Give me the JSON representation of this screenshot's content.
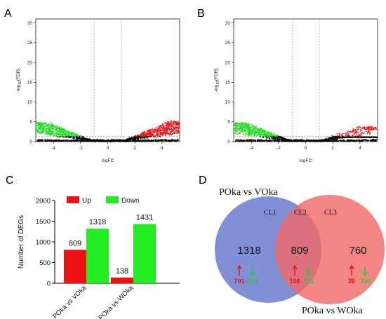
{
  "panels": {
    "a": "A",
    "b": "B",
    "c": "C",
    "d": "D"
  },
  "chart_data": [
    {
      "type": "scatter",
      "panel": "A",
      "xlabel": "logFC",
      "ylabel": "-log10(FDR)",
      "ylabel_base": "-log",
      "ylabel_sub": "10",
      "ylabel_tail": "(FDR)",
      "xlim": [
        -5.3,
        5.3
      ],
      "ylim": [
        0,
        31
      ],
      "xticks": [
        "-4",
        "-2",
        "0",
        "2",
        "4"
      ],
      "xtick_values": [
        -4,
        -2,
        0,
        2,
        4
      ],
      "yticks": [
        "0",
        "5",
        "10",
        "15",
        "20",
        "25",
        "30"
      ],
      "ytick_values": [
        0,
        5,
        10,
        15,
        20,
        25,
        30
      ],
      "vlines": [
        -1,
        1
      ],
      "hline": 1.3,
      "colors": {
        "down": "#22dd22",
        "up": "#ee1111",
        "ns": "#000000"
      },
      "max_left_y": 4.8,
      "max_right_y": 5.2,
      "up_density": 1.0
    },
    {
      "type": "scatter",
      "panel": "B",
      "xlabel": "logFC",
      "ylabel": "-log10(FDR)",
      "ylabel_base": "-log",
      "ylabel_sub": "10",
      "ylabel_tail": "(FDR)",
      "xlim": [
        -5.3,
        5.3
      ],
      "ylim": [
        0,
        31
      ],
      "xticks": [
        "-4",
        "-2",
        "0",
        "2",
        "4"
      ],
      "xtick_values": [
        -4,
        -2,
        0,
        2,
        4
      ],
      "yticks": [
        "0",
        "5",
        "10",
        "15",
        "20",
        "25",
        "30"
      ],
      "ytick_values": [
        0,
        5,
        10,
        15,
        20,
        25,
        30
      ],
      "vlines": [
        -1,
        1
      ],
      "hline": 1.3,
      "colors": {
        "down": "#22dd22",
        "up": "#ee1111",
        "ns": "#000000"
      },
      "max_left_y": 4.8,
      "max_right_y": 3.8,
      "up_density": 0.35
    },
    {
      "type": "bar",
      "panel": "C",
      "categories": [
        "POka vs VOka",
        "POka vs WOka"
      ],
      "series": [
        {
          "name": "Up",
          "values": [
            809,
            138
          ],
          "color": "#ee1111"
        },
        {
          "name": "Down",
          "values": [
            1318,
            1431
          ],
          "color": "#22ee22"
        }
      ],
      "ylabel": "Number of DEGs",
      "ylim": [
        0,
        2000
      ],
      "yticks": [
        "0",
        "500",
        "1000",
        "1500",
        "2000"
      ],
      "ytick_values": [
        0,
        500,
        1000,
        1500,
        2000
      ],
      "legend": "top-left"
    }
  ],
  "venn": {
    "left_title": "POka vs VOka",
    "right_title": "POka vs WOka",
    "cl1": "CL1",
    "cl2": "CL2",
    "cl3": "CL3",
    "left_color": "#6f7fd0",
    "right_color": "#f06a6a",
    "left": {
      "total": "1318",
      "up": "701",
      "down": "617"
    },
    "middle": {
      "total": "809",
      "up": "108",
      "down": "701"
    },
    "right": {
      "total": "760",
      "up": "30",
      "down": "730"
    },
    "up_color": "#e61414",
    "down_color": "#2ccc2c"
  }
}
